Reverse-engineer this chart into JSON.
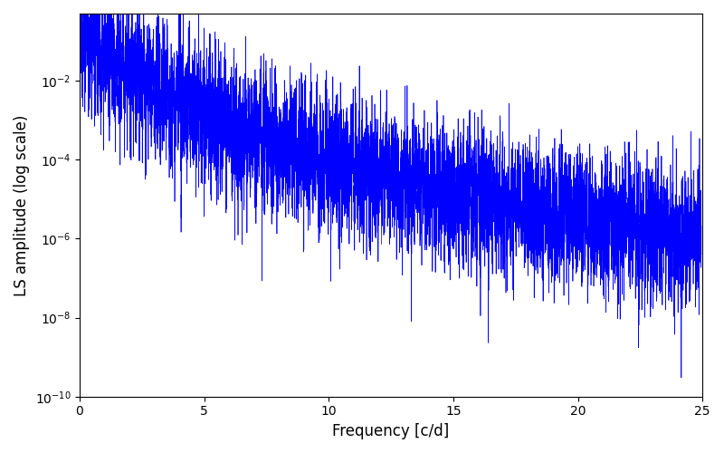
{
  "title": "",
  "xlabel": "Frequency [c/d]",
  "ylabel": "LS amplitude (log scale)",
  "xlim": [
    0,
    25
  ],
  "ylim": [
    1e-10,
    0.5
  ],
  "line_color": "#0000ff",
  "line_width": 0.5,
  "background_color": "#ffffff",
  "figsize": [
    8.0,
    5.0
  ],
  "dpi": 100,
  "n_points": 8000,
  "freq_max": 24.95,
  "seed": 12345,
  "base_amplitude": 0.0015,
  "decay_exponent": 2.2,
  "spike_period": 0.12,
  "spike_amplitude_low": 80,
  "spike_amplitude_high": 10,
  "noise_sigma": 1.8
}
